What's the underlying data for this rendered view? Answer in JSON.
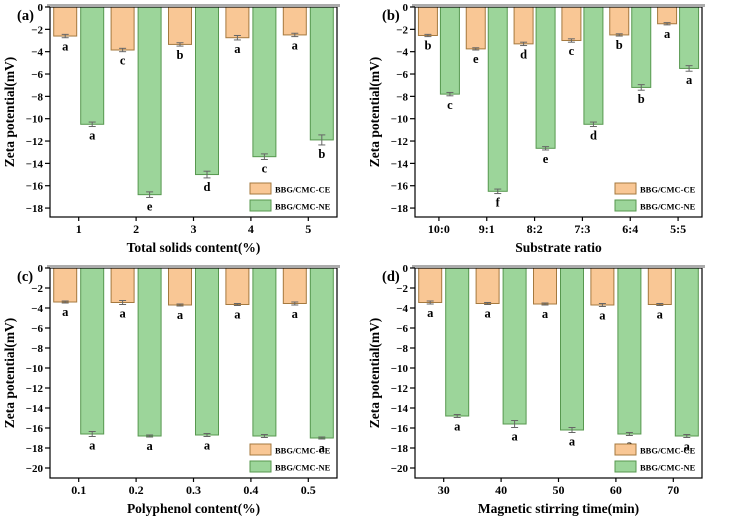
{
  "figure": {
    "description": "Zeta potential bar charts, four panels",
    "legend": {
      "entries": [
        {
          "label": "BBG/CMC-CE",
          "fill": "#F9C795",
          "stroke": "#A5793F"
        },
        {
          "label": "BBG/CMC-NE",
          "fill": "#9CD59A",
          "stroke": "#57984F"
        }
      ]
    },
    "style": {
      "error_color": "#666666",
      "frame_color": "#000000",
      "top_edge_color": "#ACACAC",
      "text_color": "#000000",
      "background": "#ffffff"
    }
  },
  "chart_data": [
    {
      "id": "a",
      "type": "bar",
      "panel_label": "(a)",
      "xlabel": "Total solids content(%)",
      "ylabel": "Zeta potential(mV)",
      "categories": [
        "1",
        "2",
        "3",
        "4",
        "5"
      ],
      "ylim": [
        -18.8,
        0
      ],
      "ytick_labels": [
        "0",
        "−2",
        "−4",
        "−6",
        "−8",
        "−10",
        "−12",
        "−14",
        "−16",
        "−18"
      ],
      "ytick_values": [
        0,
        -2,
        -4,
        -6,
        -8,
        -10,
        -12,
        -14,
        -16,
        -18
      ],
      "legend_position": "bottom-right",
      "series": [
        {
          "name": "BBG/CMC-CE",
          "values": [
            -2.6,
            -3.85,
            -3.35,
            -2.75,
            -2.5
          ],
          "errors": [
            0.15,
            0.15,
            0.15,
            0.2,
            0.15
          ],
          "letters": [
            "a",
            "c",
            "b",
            "a",
            "a"
          ]
        },
        {
          "name": "BBG/CMC-NE",
          "values": [
            -10.5,
            -16.8,
            -15.0,
            -13.4,
            -11.9
          ],
          "errors": [
            0.2,
            0.25,
            0.3,
            0.25,
            0.45
          ],
          "letters": [
            "a",
            "e",
            "d",
            "c",
            "b"
          ]
        }
      ]
    },
    {
      "id": "b",
      "type": "bar",
      "panel_label": "(b)",
      "xlabel": "Substrate ratio",
      "ylabel": "Zeta potential(mV)",
      "categories": [
        "10:0",
        "9:1",
        "8:2",
        "7:3",
        "6:4",
        "5:5"
      ],
      "ylim": [
        -18.8,
        0
      ],
      "ytick_labels": [
        "0",
        "−2",
        "−4",
        "−6",
        "−8",
        "−10",
        "−12",
        "−14",
        "−16",
        "−18"
      ],
      "ytick_values": [
        0,
        -2,
        -4,
        -6,
        -8,
        -10,
        -12,
        -14,
        -16,
        -18
      ],
      "legend_position": "bottom-right",
      "series": [
        {
          "name": "BBG/CMC-CE",
          "values": [
            -2.55,
            -3.75,
            -3.3,
            -3.0,
            -2.5,
            -1.5
          ],
          "errors": [
            0.1,
            0.1,
            0.15,
            0.15,
            0.1,
            0.1
          ],
          "letters": [
            "b",
            "e",
            "d",
            "c",
            "b",
            "a"
          ]
        },
        {
          "name": "BBG/CMC-NE",
          "values": [
            -7.8,
            -16.5,
            -12.65,
            -10.5,
            -7.2,
            -5.5
          ],
          "errors": [
            0.15,
            0.2,
            0.15,
            0.2,
            0.25,
            0.25
          ],
          "letters": [
            "c",
            "f",
            "e",
            "d",
            "b",
            "a"
          ]
        }
      ]
    },
    {
      "id": "c",
      "type": "bar",
      "panel_label": "(c)",
      "xlabel": "Polyphenol content(%)",
      "ylabel": "Zeta potential(mV)",
      "categories": [
        "0.1",
        "0.2",
        "0.3",
        "0.4",
        "0.5"
      ],
      "ylim": [
        -21.0,
        0
      ],
      "ytick_labels": [
        "0",
        "−2",
        "−4",
        "−6",
        "−8",
        "−10",
        "−12",
        "−14",
        "−16",
        "−18",
        "−20"
      ],
      "ytick_values": [
        0,
        -2,
        -4,
        -6,
        -8,
        -10,
        -12,
        -14,
        -16,
        -18,
        -20
      ],
      "legend_position": "bottom-right",
      "series": [
        {
          "name": "BBG/CMC-CE",
          "values": [
            -3.4,
            -3.45,
            -3.7,
            -3.65,
            -3.55
          ],
          "errors": [
            0.1,
            0.2,
            0.1,
            0.1,
            0.15
          ],
          "letters": [
            "a",
            "a",
            "a",
            "a",
            "a"
          ]
        },
        {
          "name": "BBG/CMC-NE",
          "values": [
            -16.6,
            -16.8,
            -16.7,
            -16.8,
            -17.0
          ],
          "errors": [
            0.25,
            0.1,
            0.15,
            0.15,
            0.1
          ],
          "letters": [
            "a",
            "a",
            "a",
            "a",
            "a"
          ]
        }
      ]
    },
    {
      "id": "d",
      "type": "bar",
      "panel_label": "(d)",
      "xlabel": "Magnetic stirring time(min)",
      "ylabel": "Zeta potential(mV)",
      "categories": [
        "30",
        "40",
        "50",
        "60",
        "70"
      ],
      "ylim": [
        -21.0,
        0
      ],
      "ytick_labels": [
        "0",
        "−2",
        "−4",
        "−6",
        "−8",
        "−10",
        "−12",
        "−14",
        "−16",
        "−18",
        "−20"
      ],
      "ytick_values": [
        0,
        -2,
        -4,
        -6,
        -8,
        -10,
        -12,
        -14,
        -16,
        -18,
        -20
      ],
      "legend_position": "bottom-right",
      "series": [
        {
          "name": "BBG/CMC-CE",
          "values": [
            -3.45,
            -3.55,
            -3.6,
            -3.7,
            -3.65
          ],
          "errors": [
            0.15,
            0.1,
            0.1,
            0.15,
            0.1
          ],
          "letters": [
            "a",
            "a",
            "a",
            "a",
            "a"
          ]
        },
        {
          "name": "BBG/CMC-NE",
          "values": [
            -14.8,
            -15.6,
            -16.2,
            -16.6,
            -16.8
          ],
          "errors": [
            0.15,
            0.35,
            0.25,
            0.15,
            0.15
          ],
          "letters": [
            "a",
            "a",
            "a",
            "a",
            "a"
          ]
        }
      ]
    }
  ]
}
